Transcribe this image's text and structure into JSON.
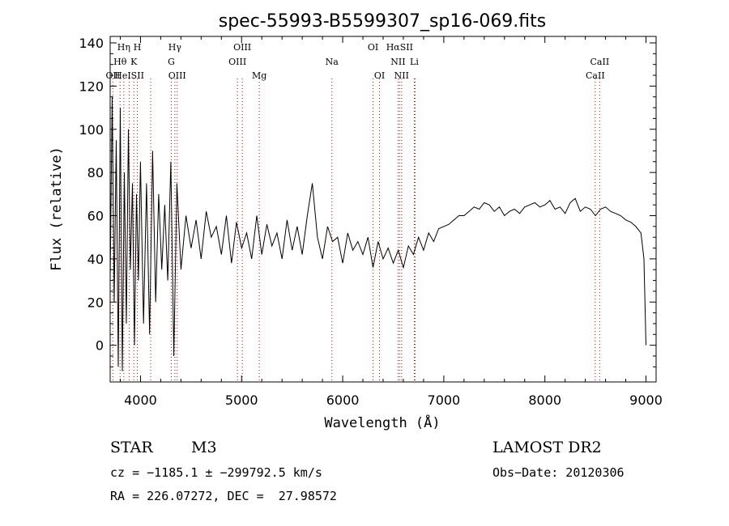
{
  "chart_data": {
    "type": "line",
    "title": "spec-55993-B5599307_sp16-069.fits",
    "xlabel": "Wavelength (Å)",
    "ylabel": "Flux (relative)",
    "xlim": [
      3700,
      9100
    ],
    "ylim": [
      -17,
      143
    ],
    "xticks": [
      4000,
      5000,
      6000,
      7000,
      8000,
      9000
    ],
    "yticks": [
      0,
      20,
      40,
      60,
      80,
      100,
      120,
      140
    ],
    "series": [
      {
        "color": "#000000",
        "x": [
          3700,
          3720,
          3740,
          3760,
          3780,
          3800,
          3820,
          3840,
          3860,
          3880,
          3900,
          3920,
          3940,
          3960,
          3980,
          4000,
          4030,
          4060,
          4090,
          4120,
          4150,
          4180,
          4210,
          4240,
          4270,
          4300,
          4330,
          4360,
          4400,
          4450,
          4500,
          4550,
          4600,
          4650,
          4700,
          4750,
          4800,
          4850,
          4900,
          4950,
          5000,
          5050,
          5100,
          5150,
          5200,
          5250,
          5300,
          5350,
          5400,
          5450,
          5500,
          5550,
          5600,
          5650,
          5700,
          5750,
          5800,
          5850,
          5900,
          5950,
          6000,
          6050,
          6100,
          6150,
          6200,
          6250,
          6300,
          6350,
          6400,
          6450,
          6500,
          6550,
          6600,
          6650,
          6700,
          6750,
          6800,
          6850,
          6900,
          6950,
          7000,
          7050,
          7100,
          7150,
          7200,
          7250,
          7300,
          7350,
          7400,
          7450,
          7500,
          7550,
          7600,
          7650,
          7700,
          7750,
          7800,
          7850,
          7900,
          7950,
          8000,
          8050,
          8100,
          8150,
          8200,
          8250,
          8300,
          8350,
          8400,
          8450,
          8500,
          8550,
          8600,
          8650,
          8700,
          8750,
          8800,
          8850,
          8900,
          8950,
          8980,
          9000
        ],
        "y": [
          30,
          115,
          20,
          95,
          -10,
          110,
          -12,
          80,
          10,
          100,
          35,
          75,
          0,
          70,
          30,
          85,
          10,
          75,
          5,
          90,
          20,
          70,
          35,
          65,
          30,
          85,
          -5,
          75,
          35,
          60,
          45,
          58,
          40,
          62,
          50,
          55,
          42,
          60,
          38,
          57,
          45,
          52,
          40,
          60,
          42,
          56,
          46,
          52,
          40,
          58,
          44,
          55,
          42,
          60,
          75,
          50,
          40,
          55,
          48,
          50,
          38,
          52,
          44,
          48,
          42,
          50,
          36,
          48,
          40,
          45,
          38,
          44,
          36,
          46,
          42,
          50,
          44,
          52,
          48,
          54,
          55,
          56,
          58,
          60,
          60,
          62,
          64,
          63,
          66,
          65,
          62,
          64,
          60,
          62,
          63,
          61,
          64,
          65,
          66,
          64,
          65,
          67,
          63,
          64,
          61,
          66,
          68,
          62,
          64,
          63,
          60,
          63,
          64,
          62,
          61,
          60,
          58,
          57,
          55,
          52,
          40,
          0
        ]
      }
    ],
    "grid": false,
    "emission_lines": [
      {
        "label": "Hη",
        "x": 3835,
        "row": 0
      },
      {
        "label": "H",
        "x": 3969,
        "row": 0
      },
      {
        "label": "Hγ",
        "x": 4340,
        "row": 0
      },
      {
        "label": "OIII",
        "x": 5007,
        "row": 0
      },
      {
        "label": "OI",
        "x": 6300,
        "row": 0
      },
      {
        "label": "HαSII",
        "x": 6563,
        "row": 0
      },
      {
        "label": "Hθ",
        "x": 3798,
        "row": 1
      },
      {
        "label": "K",
        "x": 3934,
        "row": 1
      },
      {
        "label": "G",
        "x": 4305,
        "row": 1
      },
      {
        "label": "OIII",
        "x": 4959,
        "row": 1
      },
      {
        "label": "Na",
        "x": 5893,
        "row": 1
      },
      {
        "label": "NII",
        "x": 6548,
        "row": 1
      },
      {
        "label": "Li",
        "x": 6708,
        "row": 1
      },
      {
        "label": "CaII",
        "x": 8542,
        "row": 1
      },
      {
        "label": "OII",
        "x": 3727,
        "row": 2
      },
      {
        "label": "HeISII",
        "x": 3889,
        "row": 2
      },
      {
        "label": "OIII",
        "x": 4363,
        "row": 2
      },
      {
        "label": "Mg",
        "x": 5175,
        "row": 2
      },
      {
        "label": "OI",
        "x": 6364,
        "row": 2
      },
      {
        "label": "NII",
        "x": 6583,
        "row": 2
      },
      {
        "label": "CaII",
        "x": 8498,
        "row": 2
      }
    ],
    "line_markers_x": [
      3727,
      3798,
      3835,
      3889,
      3934,
      3969,
      4101,
      4305,
      4340,
      4363,
      4959,
      5007,
      5175,
      5893,
      6300,
      6364,
      6548,
      6563,
      6583,
      6708,
      6716,
      8498,
      8542
    ]
  },
  "info": {
    "object_class": "STAR",
    "subclass": "M3",
    "cz_line": "cz = −1185.1 ± −299792.5 km/s",
    "coords_line": "RA = 226.07272, DEC =  27.98572",
    "survey": "LAMOST DR2",
    "obs_date": "Obs−Date: 20120306"
  },
  "colors": {
    "line_marker": "#cc0000",
    "spectrum": "#000000"
  }
}
